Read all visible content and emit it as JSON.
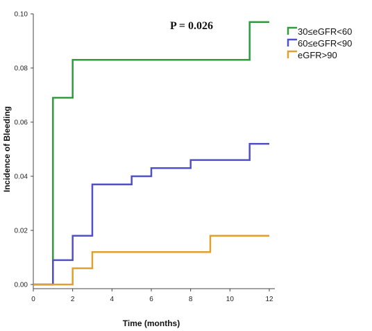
{
  "chart_data": {
    "type": "line",
    "step": true,
    "xlabel": "Time (months)",
    "ylabel": "Incidence of Bleeding",
    "xlim": [
      0,
      12
    ],
    "ylim": [
      0,
      0.1
    ],
    "xticks": [
      0,
      2,
      4,
      6,
      8,
      10,
      12
    ],
    "yticks": [
      "0.00",
      "0.02",
      "0.04",
      "0.06",
      "0.08",
      "0.10"
    ],
    "annotation": "P = 0.026",
    "legend_position": "top-right",
    "grid": false,
    "series": [
      {
        "name": "30≤eGFR<60",
        "color": "#2e9c3c",
        "points": [
          [
            0,
            0
          ],
          [
            1,
            0
          ],
          [
            1,
            0.069
          ],
          [
            2,
            0.069
          ],
          [
            2,
            0.083
          ],
          [
            11,
            0.083
          ],
          [
            11,
            0.097
          ],
          [
            12,
            0.097
          ]
        ]
      },
      {
        "name": "60≤eGFR<90",
        "color": "#5050c8",
        "points": [
          [
            0,
            0
          ],
          [
            1,
            0
          ],
          [
            1,
            0.009
          ],
          [
            2,
            0.009
          ],
          [
            2,
            0.018
          ],
          [
            3,
            0.018
          ],
          [
            3,
            0.037
          ],
          [
            5,
            0.037
          ],
          [
            5,
            0.04
          ],
          [
            6,
            0.04
          ],
          [
            6,
            0.043
          ],
          [
            8,
            0.043
          ],
          [
            8,
            0.046
          ],
          [
            11,
            0.046
          ],
          [
            11,
            0.052
          ],
          [
            12,
            0.052
          ]
        ]
      },
      {
        "name": "eGFR>90",
        "color": "#e0a030",
        "points": [
          [
            0,
            0
          ],
          [
            1,
            0
          ],
          [
            2,
            0
          ],
          [
            2,
            0.006
          ],
          [
            3,
            0.006
          ],
          [
            3,
            0.012
          ],
          [
            9,
            0.012
          ],
          [
            9,
            0.018
          ],
          [
            12,
            0.018
          ]
        ]
      }
    ]
  }
}
